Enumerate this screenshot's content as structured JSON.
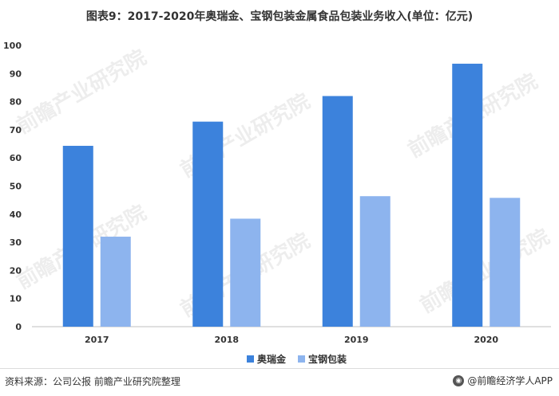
{
  "title": "图表9：2017-2020年奥瑞金、宝钢包装金属食品包装业务收入(单位：亿元)",
  "watermark_text": "前瞻产业研究院",
  "source": "资料来源：公司公报 前瞻产业研究院整理",
  "brand": "@前瞻经济学人APP",
  "chart_data": {
    "type": "bar",
    "title": "图表9：2017-2020年奥瑞金、宝钢包装金属食品包装业务收入(单位：亿元)",
    "xlabel": "",
    "ylabel": "",
    "categories": [
      "2017",
      "2018",
      "2019",
      "2020"
    ],
    "series": [
      {
        "name": "奥瑞金",
        "values": [
          64.3,
          72.9,
          82.0,
          93.5
        ],
        "color": "#3c82dc"
      },
      {
        "name": "宝钢包装",
        "values": [
          32.0,
          38.4,
          46.4,
          45.8
        ],
        "color": "#8db4ee"
      }
    ],
    "ylim": [
      0,
      100
    ],
    "yticks": [
      0,
      10,
      20,
      30,
      40,
      50,
      60,
      70,
      80,
      90,
      100
    ],
    "grid": false,
    "legend_position": "bottom-center"
  }
}
